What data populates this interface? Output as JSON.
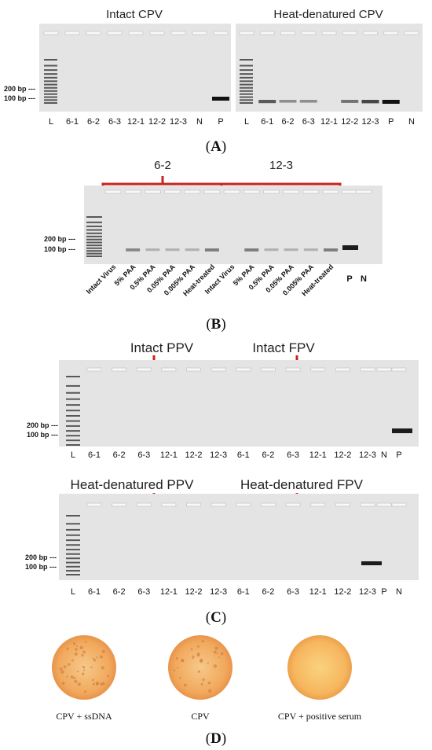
{
  "panel_a": {
    "label": "A",
    "left": {
      "title": "Intact CPV",
      "lanes": [
        "L",
        "6-1",
        "6-2",
        "6-3",
        "12-1",
        "12-2",
        "12-3",
        "N",
        "P"
      ],
      "band_intensity": [
        0,
        0,
        0,
        0,
        0,
        0,
        0,
        0,
        1.0
      ]
    },
    "right": {
      "title": "Heat-denatured CPV",
      "lanes": [
        "L",
        "6-1",
        "6-2",
        "6-3",
        "12-1",
        "12-2",
        "12-3",
        "P",
        "N"
      ],
      "band_intensity": [
        0,
        0.6,
        0.3,
        0.3,
        0,
        0.45,
        0.7,
        1.0,
        0
      ]
    },
    "marker_200": "200 bp ---",
    "marker_100": "100 bp ---"
  },
  "panel_b": {
    "label": "B",
    "group_left": "6-2",
    "group_right": "12-3",
    "lanes": [
      "Intact Virus",
      "5% PAA",
      "0.5% PAA",
      "0.05% PAA",
      "0.005% PAA",
      "Heat-treated",
      "Intact Virus",
      "5% PAA",
      "0.5% PAA",
      "0.05% PAA",
      "0.005% PAA",
      "Heat-treated"
    ],
    "band_intensity": [
      0,
      0.35,
      0.1,
      0.1,
      0.1,
      0.4,
      0,
      0.4,
      0.1,
      0.1,
      0.1,
      0.4
    ],
    "extra_lanes": [
      "P",
      "N"
    ],
    "marker_200": "200 bp ---",
    "marker_100": "100 bp ---"
  },
  "panel_c": {
    "label": "C",
    "top": {
      "title_left": "Intact PPV",
      "title_right": "Intact FPV",
      "lanes": [
        "L",
        "6-1",
        "6-2",
        "6-3",
        "12-1",
        "12-2",
        "12-3",
        "6-1",
        "6-2",
        "6-3",
        "12-1",
        "12-2",
        "12-3",
        "N",
        "P"
      ]
    },
    "bottom": {
      "title_left": "Heat-denatured PPV",
      "title_right": "Heat-denatured FPV",
      "lanes": [
        "L",
        "6-1",
        "6-2",
        "6-3",
        "12-1",
        "12-2",
        "12-3",
        "6-1",
        "6-2",
        "6-3",
        "12-1",
        "12-2",
        "12-3",
        "P",
        "N"
      ]
    },
    "marker_200": "200 bp ---",
    "marker_100": "100 bp ---"
  },
  "panel_d": {
    "label": "D",
    "wells": [
      {
        "caption": "CPV + ssDNA",
        "color": "#f2a860",
        "dots": 40
      },
      {
        "caption": "CPV",
        "color": "#f0a055",
        "dots": 28
      },
      {
        "caption": "CPV + positive serum",
        "color": "#f5b35a",
        "dots": 0
      }
    ]
  },
  "colors": {
    "bracket": "#c8231e",
    "gel": "#e4e4e4"
  }
}
